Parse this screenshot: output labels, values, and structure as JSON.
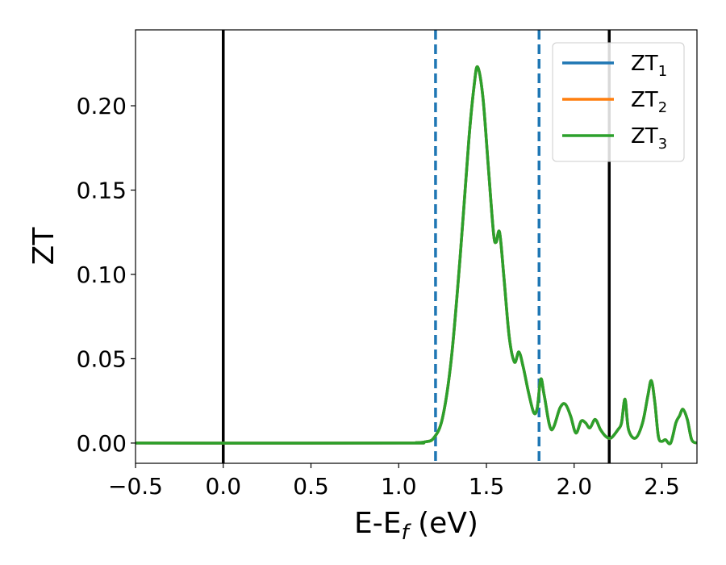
{
  "chart_data": {
    "type": "line",
    "xlabel": "E-E",
    "xlabel_sub": "f",
    "xlabel_unit": " (eV)",
    "ylabel": "ZT",
    "xlim": [
      -0.5,
      2.7
    ],
    "ylim": [
      -0.012,
      0.245
    ],
    "xticks": [
      -0.5,
      0.0,
      0.5,
      1.0,
      1.5,
      2.0,
      2.5
    ],
    "xtick_labels": [
      "−0.5",
      "0.0",
      "0.5",
      "1.0",
      "1.5",
      "2.0",
      "2.5"
    ],
    "yticks": [
      0.0,
      0.05,
      0.1,
      0.15,
      0.2
    ],
    "ytick_labels": [
      "0.00",
      "0.05",
      "0.10",
      "0.15",
      "0.20"
    ],
    "vlines_solid": [
      0.0,
      2.2
    ],
    "vlines_dashed": [
      1.21,
      1.8
    ],
    "colors": {
      "ZT1": "#1f77b4",
      "ZT2": "#ff7f0e",
      "ZT3": "#2ca02c",
      "vline_solid": "#000000",
      "vline_dashed": "#1f77b4"
    },
    "legend_placement": "upper right",
    "series": [
      {
        "name": "ZT",
        "sub": "1",
        "color": "#1f77b4"
      },
      {
        "name": "ZT",
        "sub": "2",
        "color": "#ff7f0e"
      },
      {
        "name": "ZT",
        "sub": "3",
        "color": "#2ca02c"
      }
    ],
    "x": [
      -0.5,
      1.0,
      1.1,
      1.15,
      1.2,
      1.25,
      1.3,
      1.35,
      1.4,
      1.43,
      1.45,
      1.48,
      1.51,
      1.54,
      1.555,
      1.575,
      1.6,
      1.63,
      1.66,
      1.685,
      1.71,
      1.74,
      1.77,
      1.79,
      1.81,
      1.83,
      1.87,
      1.92,
      1.95,
      1.98,
      2.01,
      2.04,
      2.065,
      2.09,
      2.12,
      2.15,
      2.18,
      2.21,
      2.25,
      2.27,
      2.29,
      2.31,
      2.35,
      2.39,
      2.42,
      2.44,
      2.46,
      2.48,
      2.5,
      2.52,
      2.55,
      2.58,
      2.6,
      2.62,
      2.645,
      2.67,
      2.7
    ],
    "y": [
      0.0,
      0.0,
      0.0002,
      0.0007,
      0.003,
      0.015,
      0.05,
      0.11,
      0.18,
      0.212,
      0.223,
      0.205,
      0.165,
      0.125,
      0.119,
      0.125,
      0.098,
      0.063,
      0.048,
      0.054,
      0.045,
      0.03,
      0.018,
      0.021,
      0.038,
      0.028,
      0.008,
      0.021,
      0.023,
      0.016,
      0.006,
      0.013,
      0.012,
      0.009,
      0.014,
      0.008,
      0.004,
      0.003,
      0.008,
      0.012,
      0.026,
      0.008,
      0.003,
      0.012,
      0.028,
      0.037,
      0.024,
      0.004,
      0.001,
      0.002,
      0.0,
      0.012,
      0.016,
      0.02,
      0.014,
      0.002,
      0.0
    ]
  }
}
